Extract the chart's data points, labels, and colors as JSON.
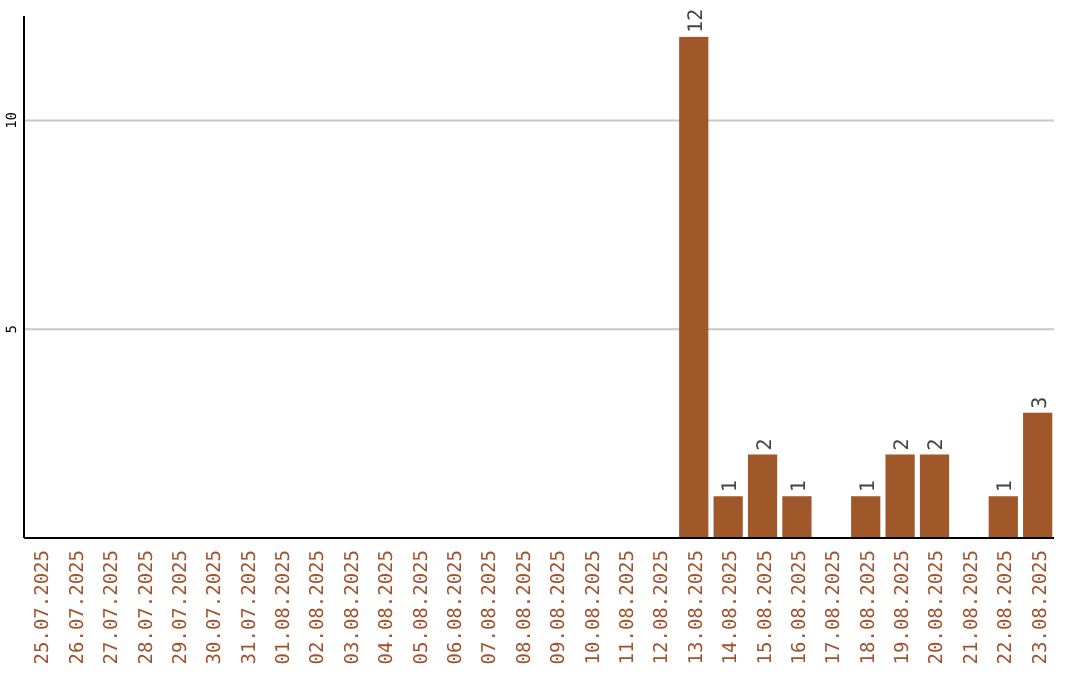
{
  "chart_data": {
    "type": "bar",
    "categories": [
      "25.07.2025",
      "26.07.2025",
      "27.07.2025",
      "28.07.2025",
      "29.07.2025",
      "30.07.2025",
      "31.07.2025",
      "01.08.2025",
      "02.08.2025",
      "03.08.2025",
      "04.08.2025",
      "05.08.2025",
      "06.08.2025",
      "07.08.2025",
      "08.08.2025",
      "09.08.2025",
      "10.08.2025",
      "11.08.2025",
      "12.08.2025",
      "13.08.2025",
      "14.08.2025",
      "15.08.2025",
      "16.08.2025",
      "17.08.2025",
      "18.08.2025",
      "19.08.2025",
      "20.08.2025",
      "21.08.2025",
      "22.08.2025",
      "23.08.2025"
    ],
    "values": [
      0,
      0,
      0,
      0,
      0,
      0,
      0,
      0,
      0,
      0,
      0,
      0,
      0,
      0,
      0,
      0,
      0,
      0,
      0,
      12,
      1,
      2,
      1,
      0,
      1,
      2,
      2,
      0,
      1,
      3
    ],
    "value_labels": [
      null,
      null,
      null,
      null,
      null,
      null,
      null,
      null,
      null,
      null,
      null,
      null,
      null,
      null,
      null,
      null,
      null,
      null,
      null,
      "12",
      "1",
      "2",
      "1",
      null,
      "1",
      "2",
      "2",
      null,
      "1",
      "3"
    ],
    "color": "#a0582a",
    "ylim": [
      0,
      12.5
    ],
    "yticks": [
      5,
      10
    ],
    "grid": "y"
  }
}
